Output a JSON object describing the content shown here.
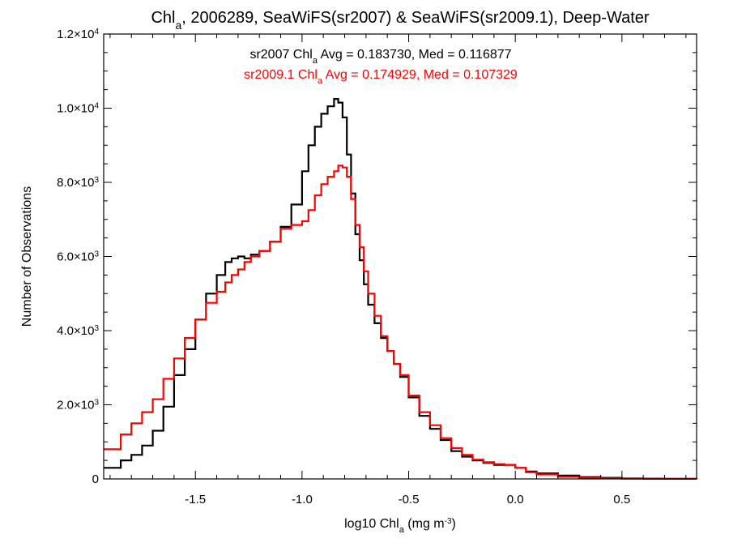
{
  "chart_data": {
    "type": "line",
    "title": {
      "parts": [
        {
          "t": "Chl",
          "sub": false
        },
        {
          "t": "a",
          "sub": true
        },
        {
          "t": ", 2006289, SeaWiFS(sr2007) & SeaWiFS(sr2009.1), Deep-Water",
          "sub": false
        }
      ]
    },
    "xlabel": {
      "parts": [
        {
          "t": "log10 Chl",
          "sub": false
        },
        {
          "t": "a",
          "sub": true
        },
        {
          "t": " (mg m",
          "sub": false
        },
        {
          "t": "-3",
          "sup": true
        },
        {
          "t": ")",
          "sub": false
        }
      ]
    },
    "ylabel": "Number of Observations",
    "xlim": [
      -1.93,
      0.85
    ],
    "ylim": [
      0,
      12000
    ],
    "x_ticks": [
      {
        "v": -1.5,
        "label": "-1.5"
      },
      {
        "v": -1.0,
        "label": "-1.0"
      },
      {
        "v": -0.5,
        "label": "-0.5"
      },
      {
        "v": 0.0,
        "label": "0.0"
      },
      {
        "v": 0.5,
        "label": "0.5"
      }
    ],
    "y_ticks": [
      {
        "v": 0,
        "label": "0",
        "exp": ""
      },
      {
        "v": 2000,
        "label": "2.0×10",
        "exp": "3"
      },
      {
        "v": 4000,
        "label": "4.0×10",
        "exp": "3"
      },
      {
        "v": 6000,
        "label": "6.0×10",
        "exp": "3"
      },
      {
        "v": 8000,
        "label": "8.0×10",
        "exp": "3"
      },
      {
        "v": 10000,
        "label": "1.0×10",
        "exp": "4"
      },
      {
        "v": 12000,
        "label": "1.2×10",
        "exp": "4"
      }
    ],
    "grid": false,
    "annotations": [
      {
        "color": "#000000",
        "parts": [
          {
            "t": "sr2007 Chl",
            "sub": false
          },
          {
            "t": "a",
            "sub": true
          },
          {
            "t": " Avg = 0.183730, Med = 0.116877",
            "sub": false
          }
        ]
      },
      {
        "color": "#ff0000",
        "parts": [
          {
            "t": "sr2009.1 Chl",
            "sub": false
          },
          {
            "t": "a",
            "sub": true
          },
          {
            "t": " Avg = 0.174929, Med = 0.107329",
            "sub": false
          }
        ]
      }
    ],
    "series": [
      {
        "color": "#000000",
        "step": true,
        "x": [
          -1.93,
          -1.85,
          -1.8,
          -1.75,
          -1.7,
          -1.65,
          -1.6,
          -1.55,
          -1.5,
          -1.45,
          -1.4,
          -1.36,
          -1.33,
          -1.3,
          -1.27,
          -1.24,
          -1.2,
          -1.15,
          -1.1,
          -1.05,
          -1.0,
          -0.97,
          -0.94,
          -0.91,
          -0.88,
          -0.85,
          -0.83,
          -0.81,
          -0.79,
          -0.77,
          -0.75,
          -0.73,
          -0.71,
          -0.69,
          -0.66,
          -0.63,
          -0.6,
          -0.57,
          -0.54,
          -0.5,
          -0.45,
          -0.4,
          -0.35,
          -0.3,
          -0.25,
          -0.2,
          -0.15,
          -0.1,
          -0.05,
          0.0,
          0.05,
          0.1,
          0.2,
          0.3,
          0.4,
          0.5,
          0.6,
          0.7,
          0.85
        ],
        "y": [
          300,
          500,
          650,
          900,
          1300,
          1950,
          2800,
          3500,
          4300,
          5000,
          5500,
          5850,
          5950,
          6000,
          5950,
          6050,
          6150,
          6400,
          6800,
          7400,
          8300,
          9000,
          9500,
          9850,
          10050,
          10250,
          10150,
          9750,
          8750,
          7700,
          6600,
          5900,
          5250,
          4700,
          4200,
          3800,
          3450,
          3100,
          2750,
          2200,
          1700,
          1350,
          1050,
          750,
          600,
          500,
          430,
          380,
          380,
          300,
          200,
          150,
          90,
          50,
          30,
          15,
          8,
          5,
          3
        ]
      },
      {
        "color": "#ff0000",
        "step": true,
        "x": [
          -1.93,
          -1.85,
          -1.8,
          -1.75,
          -1.7,
          -1.65,
          -1.6,
          -1.55,
          -1.5,
          -1.45,
          -1.4,
          -1.36,
          -1.33,
          -1.3,
          -1.27,
          -1.24,
          -1.2,
          -1.15,
          -1.1,
          -1.05,
          -1.0,
          -0.97,
          -0.94,
          -0.91,
          -0.88,
          -0.85,
          -0.83,
          -0.81,
          -0.79,
          -0.77,
          -0.75,
          -0.73,
          -0.71,
          -0.69,
          -0.66,
          -0.63,
          -0.6,
          -0.57,
          -0.54,
          -0.5,
          -0.45,
          -0.4,
          -0.35,
          -0.3,
          -0.25,
          -0.2,
          -0.15,
          -0.1,
          -0.05,
          0.0,
          0.05,
          0.1,
          0.2,
          0.3,
          0.4,
          0.5,
          0.6,
          0.7,
          0.85
        ],
        "y": [
          800,
          1200,
          1500,
          1800,
          2150,
          2700,
          3250,
          3800,
          4300,
          4750,
          5050,
          5300,
          5500,
          5650,
          5850,
          6000,
          6150,
          6400,
          6750,
          6850,
          6950,
          7250,
          7650,
          7950,
          8150,
          8300,
          8450,
          8400,
          8150,
          7550,
          6850,
          6250,
          5600,
          5000,
          4400,
          3850,
          3450,
          3100,
          2800,
          2250,
          1800,
          1450,
          1100,
          830,
          650,
          520,
          450,
          400,
          380,
          300,
          180,
          120,
          60,
          30,
          15,
          8,
          4,
          2,
          1
        ]
      }
    ]
  }
}
